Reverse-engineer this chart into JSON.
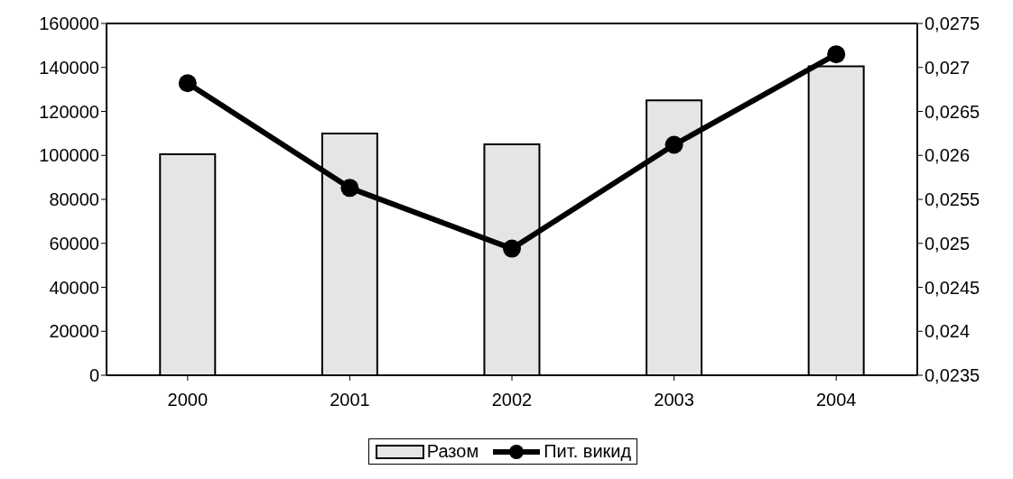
{
  "chart_data": {
    "type": "bar",
    "categories": [
      "2000",
      "2001",
      "2002",
      "2003",
      "2004"
    ],
    "series": [
      {
        "name": "Разом",
        "color": "#e5e5e5",
        "values": [
          100500,
          110000,
          105000,
          125000,
          140500
        ]
      },
      {
        "name": "Пит. викид",
        "type": "line",
        "axis": "y2",
        "color": "#000000",
        "values": [
          0.02682,
          0.02563,
          0.02494,
          0.02612,
          0.02715
        ]
      }
    ],
    "ylim": [
      0,
      160000
    ],
    "yticks": [
      0,
      20000,
      40000,
      60000,
      80000,
      100000,
      120000,
      140000,
      160000
    ],
    "y2lim": [
      0.0235,
      0.0275
    ],
    "y2ticks": [
      {
        "value": 0.0235,
        "label": "0,0235"
      },
      {
        "value": 0.024,
        "label": "0,024"
      },
      {
        "value": 0.0245,
        "label": "0,0245"
      },
      {
        "value": 0.025,
        "label": "0,025"
      },
      {
        "value": 0.0255,
        "label": "0,0255"
      },
      {
        "value": 0.026,
        "label": "0,026"
      },
      {
        "value": 0.0265,
        "label": "0,0265"
      },
      {
        "value": 0.027,
        "label": "0,027"
      },
      {
        "value": 0.0275,
        "label": "0,0275"
      }
    ],
    "legend": "bottom",
    "marker": "circle",
    "grid": false
  }
}
